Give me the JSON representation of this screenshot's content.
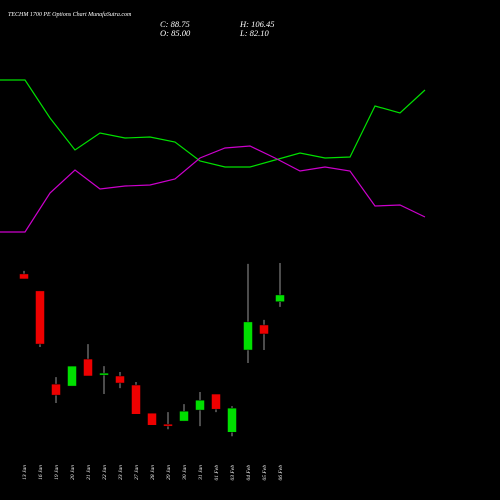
{
  "chart_data": [
    {
      "type": "candlestick",
      "title": "TECHM 1700 PE Options Chart MunafaSutra.com",
      "annotations": [
        "C: 88.75",
        "H: 106.45",
        "O: 85.00",
        "L: 82.10"
      ],
      "categories": [
        "13 Jan",
        "16 Jan",
        "19 Jan",
        "20 Jan",
        "21 Jan",
        "22 Jan",
        "23 Jan",
        "27 Jan",
        "28 Jan",
        "29 Jan",
        "30 Jan",
        "31 Jan",
        "01 Feb",
        "03 Feb",
        "04 Feb",
        "05 Feb",
        "06 Feb"
      ],
      "open": [
        100.4,
        91.0,
        39.3,
        38.2,
        53.2,
        44.3,
        43.8,
        38.8,
        23.2,
        17.1,
        18.8,
        24.9,
        33.8,
        12.6,
        58.2,
        72.1,
        85.0
      ],
      "high": [
        102.1,
        91.0,
        43.2,
        49.3,
        61.5,
        49.3,
        46.0,
        40.5,
        23.2,
        23.8,
        28.2,
        34.9,
        33.8,
        27.1,
        106.0,
        74.9,
        106.45
      ],
      "low": [
        97.6,
        59.9,
        28.8,
        38.2,
        43.8,
        33.8,
        37.1,
        22.6,
        16.5,
        14.3,
        18.8,
        16.0,
        23.8,
        10.4,
        51.0,
        58.2,
        82.1
      ],
      "close": [
        97.6,
        61.5,
        33.2,
        49.3,
        43.8,
        45.4,
        39.9,
        22.6,
        16.5,
        16.0,
        24.3,
        30.4,
        25.4,
        26.0,
        73.8,
        67.1,
        88.75
      ],
      "up_color": "#00e000",
      "down_color": "#ee0000",
      "ylim": [
        0,
        112
      ]
    },
    {
      "type": "line",
      "x": [
        0,
        1,
        2,
        3,
        4,
        5,
        6,
        7,
        8,
        9,
        10,
        11,
        12,
        13,
        14,
        15,
        16,
        17
      ],
      "series": [
        {
          "color": "#00e000",
          "values": [
            170,
            170,
            132,
            100,
            117,
            112,
            113,
            108,
            89,
            83,
            83,
            90,
            97,
            92,
            93,
            144,
            137,
            160
          ]
        },
        {
          "color": "#cc00cc",
          "values": [
            18,
            18,
            57,
            80,
            61,
            64,
            65,
            71,
            92,
            102,
            104,
            92,
            79,
            83,
            79,
            44,
            45,
            33
          ]
        }
      ],
      "xlim": [
        0,
        17
      ],
      "ylim": [
        0,
        200
      ]
    }
  ]
}
